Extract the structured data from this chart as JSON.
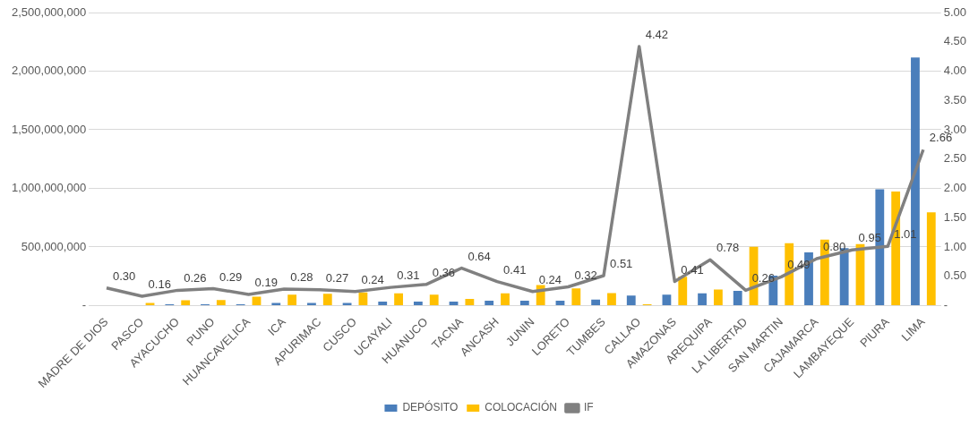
{
  "chart_data": {
    "type": "bar",
    "categories": [
      "MADRE DE DIOS",
      "PASCO",
      "AYACUCHO",
      "PUNO",
      "HUANCAVELICA",
      "ICA",
      "APURIMAC",
      "CUSCO",
      "UCAYALI",
      "HUANUCO",
      "TACNA",
      "ANCASH",
      "JUNIN",
      "LORETO",
      "TUMBES",
      "CALLAO",
      "AMAZONAS",
      "AREQUIPA",
      "LA LIBERTAD",
      "SAN MARTIN",
      "CAJAMARCA",
      "LAMBAYEQUE",
      "PIURA",
      "LIMA"
    ],
    "series": [
      {
        "name": "DEPÓSITO",
        "color": "#4a7ebb",
        "values": [
          0,
          0,
          11000000,
          11000000,
          11000000,
          22000000,
          22000000,
          22000000,
          34000000,
          34000000,
          34000000,
          42000000,
          42000000,
          42000000,
          51000000,
          85000000,
          93000000,
          105000000,
          125000000,
          255000000,
          453000000,
          490000000,
          992000000,
          2116000000
        ]
      },
      {
        "name": "COLOCACIÓN",
        "color": "#ffc000",
        "values": [
          0,
          22000000,
          45000000,
          48000000,
          76000000,
          92000000,
          101000000,
          112000000,
          104000000,
          92000000,
          56000000,
          104000000,
          175000000,
          147000000,
          107000000,
          11000000,
          246000000,
          136000000,
          501000000,
          532000000,
          563000000,
          524000000,
          973000000,
          795000000
        ]
      },
      {
        "name": "IF",
        "type": "line",
        "axis": "y2",
        "color": "#808080",
        "values": [
          0.3,
          0.16,
          0.26,
          0.29,
          0.19,
          0.28,
          0.27,
          0.24,
          0.31,
          0.36,
          0.64,
          0.41,
          0.24,
          0.32,
          0.51,
          4.42,
          0.41,
          0.78,
          0.26,
          0.49,
          0.8,
          0.95,
          1.01,
          2.66
        ],
        "value_labels": [
          "0.30",
          "0.16",
          "0.26",
          "0.29",
          "0.19",
          "0.28",
          "0.27",
          "0.24",
          "0.31",
          "0.36",
          "0.64",
          "0.41",
          "0.24",
          "0.32",
          "0.51",
          "4.42",
          "0.41",
          "0.78",
          "0.26",
          "0.49",
          "0.80",
          "0.95",
          "1.01",
          "2.66"
        ]
      }
    ],
    "ylim": [
      0,
      2500000000
    ],
    "yticks": [
      {
        "value": 0,
        "label": "-"
      },
      {
        "value": 500000000,
        "label": "500,000,000"
      },
      {
        "value": 1000000000,
        "label": "1,000,000,000"
      },
      {
        "value": 1500000000,
        "label": "1,500,000,000"
      },
      {
        "value": 2000000000,
        "label": "2,000,000,000"
      },
      {
        "value": 2500000000,
        "label": "2,500,000,000"
      }
    ],
    "y2lim": [
      0,
      5
    ],
    "y2ticks": [
      {
        "value": 0,
        "label": "-"
      },
      {
        "value": 0.5,
        "label": "0.50"
      },
      {
        "value": 1,
        "label": "1.00"
      },
      {
        "value": 1.5,
        "label": "1.50"
      },
      {
        "value": 2,
        "label": "2.00"
      },
      {
        "value": 2.5,
        "label": "2.50"
      },
      {
        "value": 3,
        "label": "3.00"
      },
      {
        "value": 3.5,
        "label": "3.50"
      },
      {
        "value": 4,
        "label": "4.00"
      },
      {
        "value": 4.5,
        "label": "4.50"
      },
      {
        "value": 5,
        "label": "5.00"
      }
    ],
    "grid": "y",
    "legend": "bottom",
    "marker": "none"
  }
}
